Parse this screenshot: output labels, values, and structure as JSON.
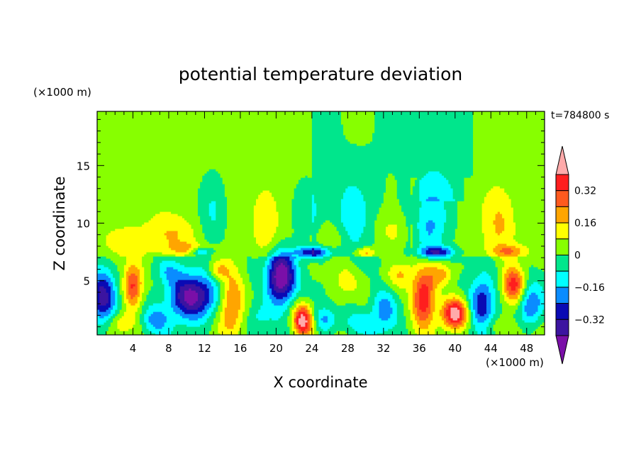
{
  "chart_data": {
    "type": "heatmap",
    "title": "potential temperature deviation",
    "xlabel": "X coordinate",
    "ylabel": "Z coordinate",
    "x_unit": "(×1000 m)",
    "y_unit": "(×1000 m)",
    "time_label": "t=784800 s",
    "xlim": [
      0,
      50
    ],
    "ylim": [
      0.3,
      19.7
    ],
    "x_ticks": [
      4,
      8,
      12,
      16,
      20,
      24,
      28,
      32,
      36,
      40,
      44,
      48
    ],
    "y_ticks": [
      5,
      10,
      15
    ],
    "x_minor_step": 1,
    "y_minor_step": 1,
    "colorbar": {
      "levels": [
        -0.4,
        -0.32,
        -0.24,
        -0.16,
        -0.08,
        0,
        0.08,
        0.16,
        0.24,
        0.32,
        0.4
      ],
      "labeled_levels": [
        0.32,
        0.16,
        0,
        -0.16,
        -0.32
      ],
      "labels": [
        "0.32",
        "0.16",
        "0",
        "−0.16",
        "−0.32"
      ],
      "colors": [
        "#7a0fa8",
        "#3c14a0",
        "#0a0ab4",
        "#0a8cff",
        "#00ffff",
        "#00e68c",
        "#87ff00",
        "#ffff00",
        "#ffa500",
        "#ff5a1e",
        "#ff1e1e",
        "#ffaaaa"
      ]
    },
    "description_of_field": {
      "upper_layer_z_7_to_20": "mostly 0 to 0.08 (green) with columns of slightly negative and positive values",
      "lower_layer_z_0_to_7": "turbulent mixture from below -0.4 to above 0.4"
    }
  }
}
